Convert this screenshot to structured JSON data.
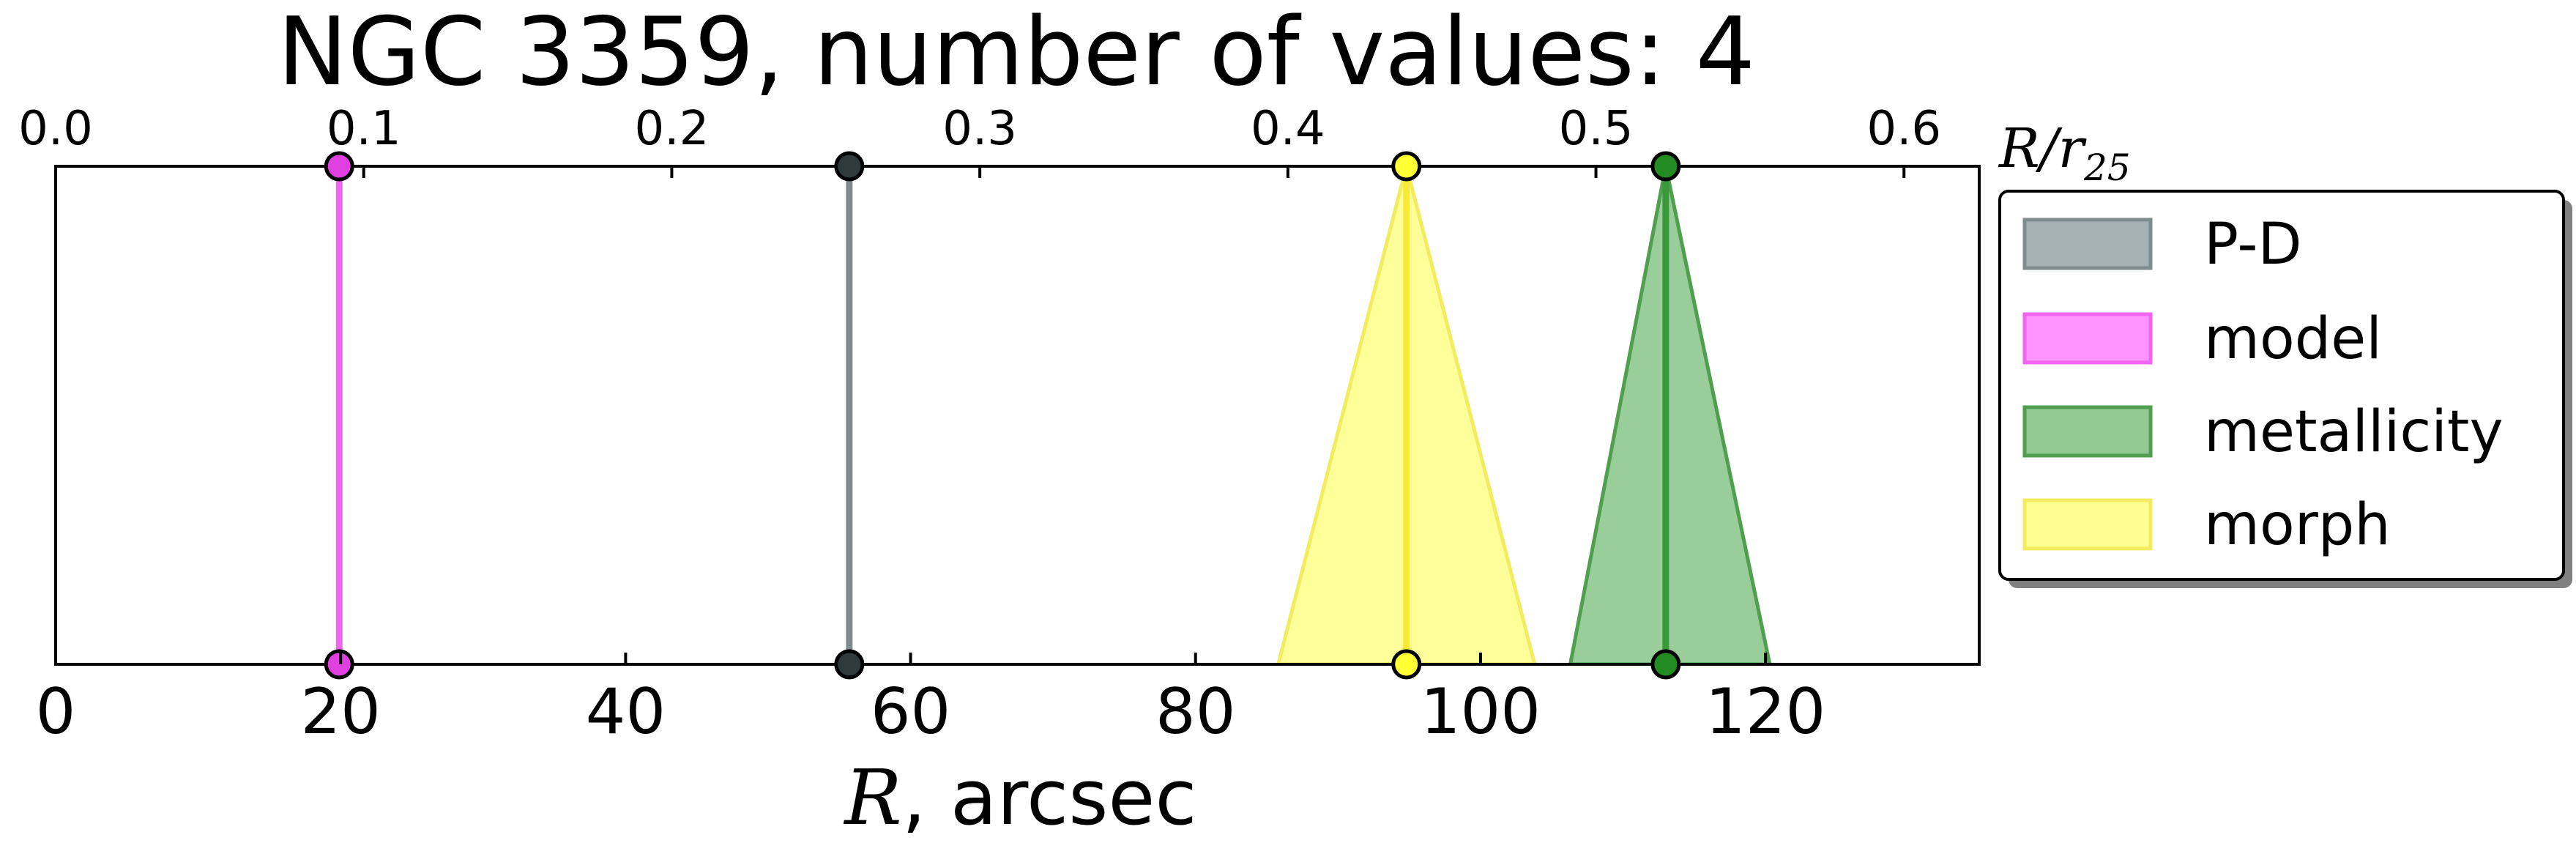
{
  "chart_data": {
    "type": "vertical-lines-with-uncertainty",
    "title": "NGC 3359, number of values: 4",
    "xlabel_symbol": "R",
    "xlabel_rest": ", arcsec",
    "xlim": [
      0,
      135
    ],
    "xticks": [
      0,
      20,
      40,
      60,
      80,
      100,
      120
    ],
    "top_axis": {
      "label_base": "R/r",
      "label_sub": "25",
      "ticks": [
        0.0,
        0.1,
        0.2,
        0.3,
        0.4,
        0.5,
        0.6
      ],
      "r25_arcsec": 216.2
    },
    "legend_position": "right",
    "series": [
      {
        "name": "P-D",
        "x": 55.7,
        "lower": 55.7,
        "upper": 55.7,
        "color": "#7f8c8d",
        "fill": "#95a5a6",
        "edge": "#7f8c8d",
        "marker": "#2f3a3b"
      },
      {
        "name": "model",
        "x": 19.9,
        "lower": 19.9,
        "upper": 19.9,
        "color": "#f066f0",
        "fill": "#ff80ff",
        "edge": "#f066f0",
        "marker": "#e040e0"
      },
      {
        "name": "metallicity",
        "x": 113.0,
        "lower": 106.3,
        "upper": 120.3,
        "color": "#3a9a3a",
        "fill": "#80c080",
        "edge": "#4f9f4f",
        "marker": "#228b22"
      },
      {
        "name": "morph",
        "x": 94.8,
        "lower": 85.8,
        "upper": 103.8,
        "color": "#f7e83a",
        "fill": "#ffff80",
        "edge": "#f2ec60",
        "marker": "#ffff33"
      }
    ]
  }
}
